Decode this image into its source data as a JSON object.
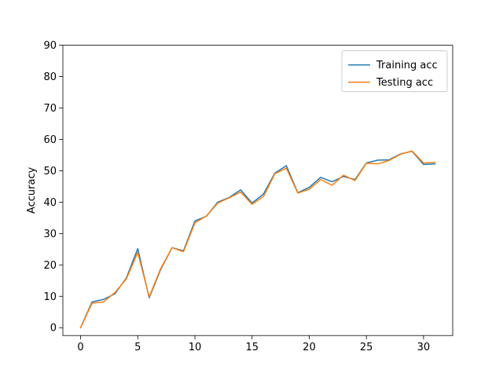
{
  "chart_data": {
    "type": "line",
    "title": "",
    "xlabel": "",
    "ylabel": "Accuracy",
    "xlim": [
      -1.55,
      32.55
    ],
    "ylim": [
      -2.5,
      90
    ],
    "xticks": [
      0,
      5,
      10,
      15,
      20,
      25,
      30
    ],
    "yticks": [
      0,
      10,
      20,
      30,
      40,
      50,
      60,
      70,
      80,
      90
    ],
    "grid": false,
    "legend_position": "top-right",
    "x": [
      0,
      1,
      2,
      3,
      4,
      5,
      6,
      7,
      8,
      9,
      10,
      11,
      12,
      13,
      14,
      15,
      16,
      17,
      18,
      19,
      20,
      21,
      22,
      23,
      24,
      25,
      26,
      27,
      28,
      29,
      30,
      31
    ],
    "series": [
      {
        "name": "Training acc",
        "color": "#1f77b4",
        "values": [
          0,
          8.2,
          9,
          10.8,
          15.8,
          25.2,
          9.5,
          18.5,
          25.5,
          24.5,
          34,
          35.5,
          40,
          41.5,
          43.9,
          39.7,
          42.6,
          49.3,
          51.6,
          43,
          44.7,
          47.9,
          46.5,
          48.2,
          47.2,
          52.5,
          53.4,
          53.5,
          55.4,
          56.2,
          52,
          52.2
        ]
      },
      {
        "name": "Testing acc",
        "color": "#ff7f0e",
        "values": [
          0,
          7.8,
          8.2,
          11.2,
          15.5,
          24,
          9.8,
          18.8,
          25.5,
          24.2,
          33.4,
          35.6,
          39.7,
          41.4,
          43.2,
          39.3,
          41.8,
          49.1,
          50.8,
          42.9,
          44.1,
          47.2,
          45.4,
          48.6,
          46.9,
          52.4,
          52.2,
          53.3,
          55.3,
          56.3,
          52.5,
          52.7
        ]
      }
    ]
  }
}
